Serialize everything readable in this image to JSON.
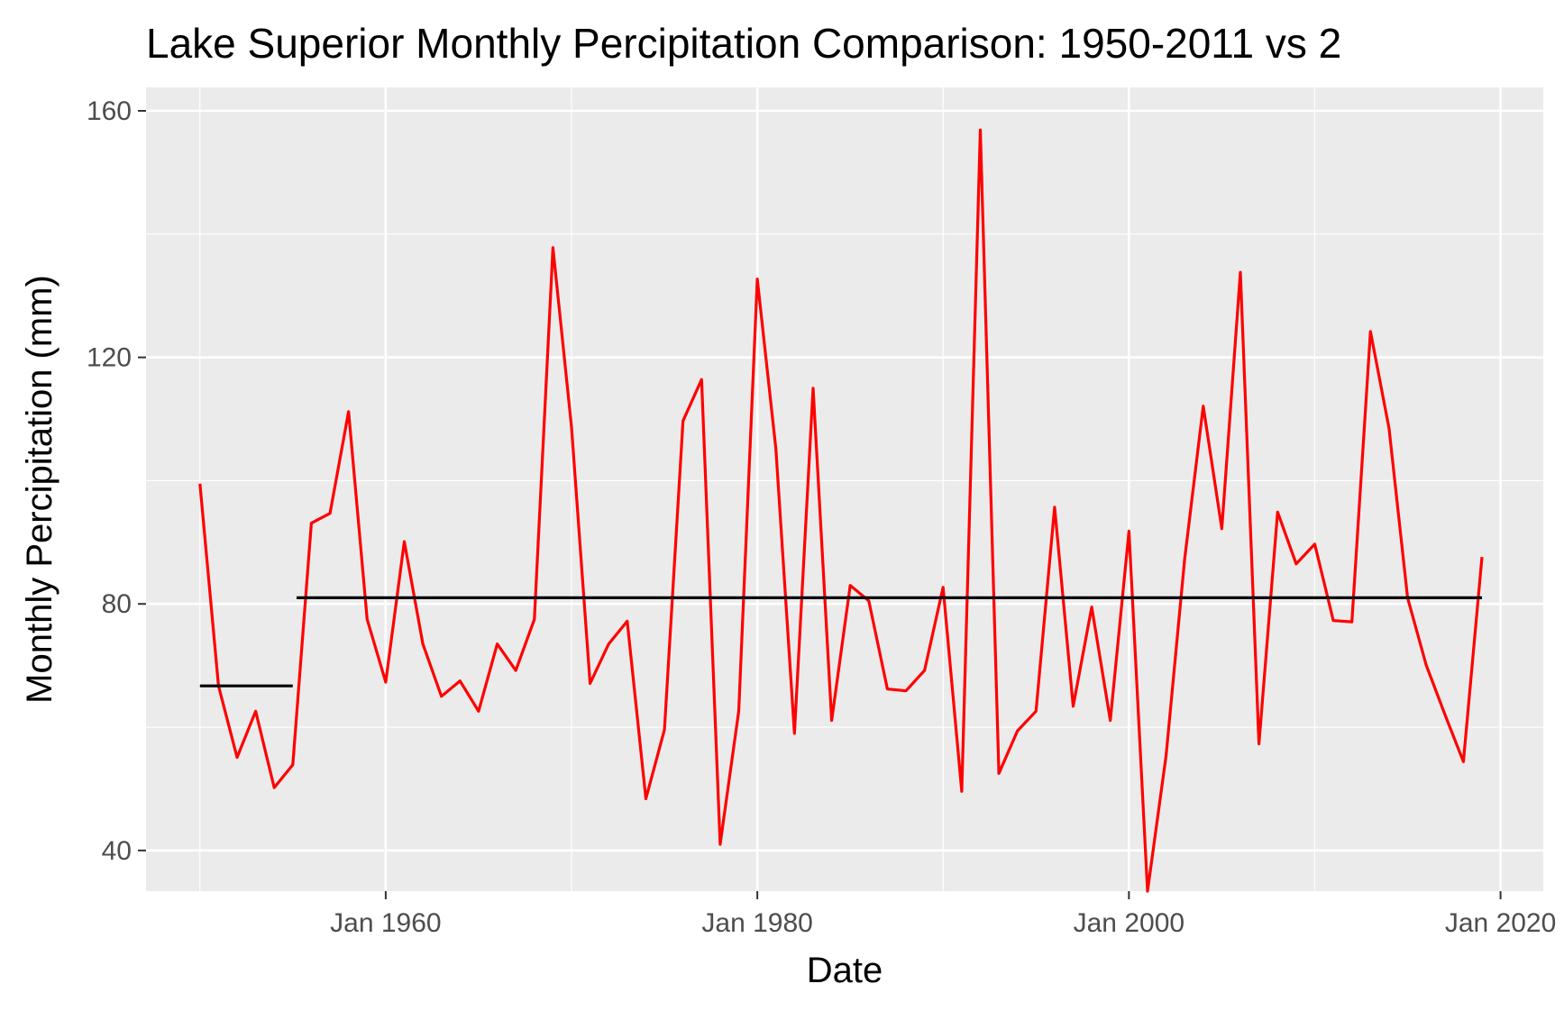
{
  "chart_data": {
    "type": "line",
    "title": "Lake Superior Monthly Percipitation Comparison: 1950-2011 vs 2",
    "xlabel": "Date",
    "ylabel": "Monthly Percipitation (mm)",
    "x_tick_labels": [
      "Jan 1960",
      "Jan 1980",
      "Jan 2000",
      "Jan 2020"
    ],
    "x_ticks": [
      1960,
      1980,
      2000,
      2020
    ],
    "y_ticks": [
      40,
      80,
      120,
      160
    ],
    "y_tick_labels": [
      "40",
      "80",
      "120",
      "160"
    ],
    "xlim": [
      1947.1,
      2022.3
    ],
    "ylim": [
      33.4,
      163.8
    ],
    "grid": true,
    "legend": "none",
    "colors": {
      "series": "#ff0000",
      "reference": "#000000",
      "panel": "#ebebeb",
      "grid": "#ffffff"
    },
    "series": [
      {
        "color": "#ff0000",
        "x": [
          1950,
          1951,
          1952,
          1953,
          1954,
          1955,
          1956,
          1957,
          1958,
          1959,
          1960,
          1961,
          1962,
          1963,
          1964,
          1965,
          1966,
          1967,
          1968,
          1969,
          1970,
          1971,
          1972,
          1973,
          1974,
          1975,
          1976,
          1977,
          1978,
          1979,
          1980,
          1981,
          1982,
          1983,
          1984,
          1985,
          1986,
          1987,
          1988,
          1989,
          1990,
          1991,
          1992,
          1993,
          1994,
          1995,
          1996,
          1997,
          1998,
          1999,
          2000,
          2001,
          2002,
          2003,
          2004,
          2005,
          2006,
          2007,
          2008,
          2009,
          2010,
          2011,
          2012,
          2013,
          2014,
          2015,
          2016,
          2017,
          2018,
          2019
        ],
        "y": [
          99.5,
          66.7,
          55.1,
          62.6,
          50.2,
          53.9,
          93.1,
          94.7,
          111.2,
          77.5,
          67.3,
          90.1,
          73.5,
          65.0,
          67.5,
          62.6,
          73.5,
          69.2,
          77.5,
          137.8,
          108.7,
          67.1,
          73.5,
          77.2,
          48.4,
          59.6,
          109.7,
          116.4,
          41.0,
          62.6,
          132.7,
          105.2,
          59.0,
          115.0,
          61.1,
          83.0,
          80.5,
          66.2,
          65.9,
          69.2,
          82.7,
          49.6,
          156.9,
          52.5,
          59.4,
          62.6,
          95.7,
          63.4,
          79.5,
          61.1,
          91.8,
          33.4,
          55.4,
          87.3,
          112.1,
          92.2,
          133.8,
          57.3,
          94.9,
          86.5,
          89.7,
          77.3,
          77.1,
          124.2,
          108.5,
          81.0,
          70.1,
          62.1,
          54.4,
          87.6
        ]
      },
      {
        "color": "#000000",
        "x": [
          1950,
          1955
        ],
        "y": [
          66.7,
          66.7
        ]
      },
      {
        "color": "#000000",
        "x": [
          1955.2,
          2019
        ],
        "y": [
          81.0,
          81.0
        ]
      }
    ]
  }
}
